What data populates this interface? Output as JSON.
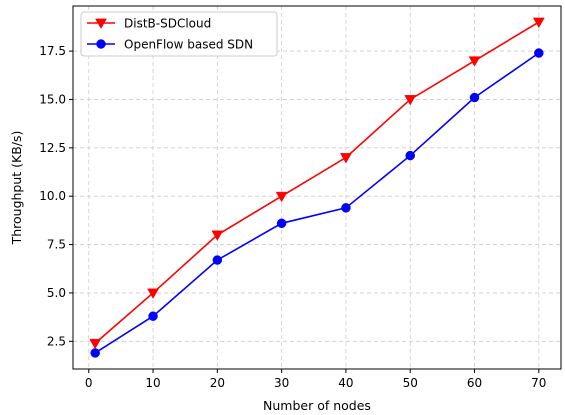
{
  "chart_data": {
    "type": "line",
    "title": "",
    "xlabel": "Number of nodes",
    "ylabel": "Throughput (KB/s)",
    "x": [
      1,
      10,
      20,
      30,
      40,
      50,
      60,
      70
    ],
    "xlim": [
      -2.45,
      73.45
    ],
    "ylim": [
      1.07,
      19.83
    ],
    "xticks": [
      0,
      10,
      20,
      30,
      40,
      50,
      60,
      70
    ],
    "yticks": [
      2.5,
      5.0,
      7.5,
      10.0,
      12.5,
      15.0,
      17.5
    ],
    "grid": true,
    "legend_position": "top-left",
    "series": [
      {
        "name": "DistB-SDCloud",
        "color": "#ff0000",
        "marker": "triangle-down",
        "values": [
          2.4,
          5.0,
          8.0,
          10.0,
          12.0,
          15.0,
          17.0,
          19.0
        ]
      },
      {
        "name": "OpenFlow based SDN",
        "color": "#0000ff",
        "marker": "circle",
        "values": [
          1.9,
          3.8,
          6.7,
          8.6,
          9.4,
          12.1,
          15.1,
          17.4
        ]
      }
    ]
  }
}
